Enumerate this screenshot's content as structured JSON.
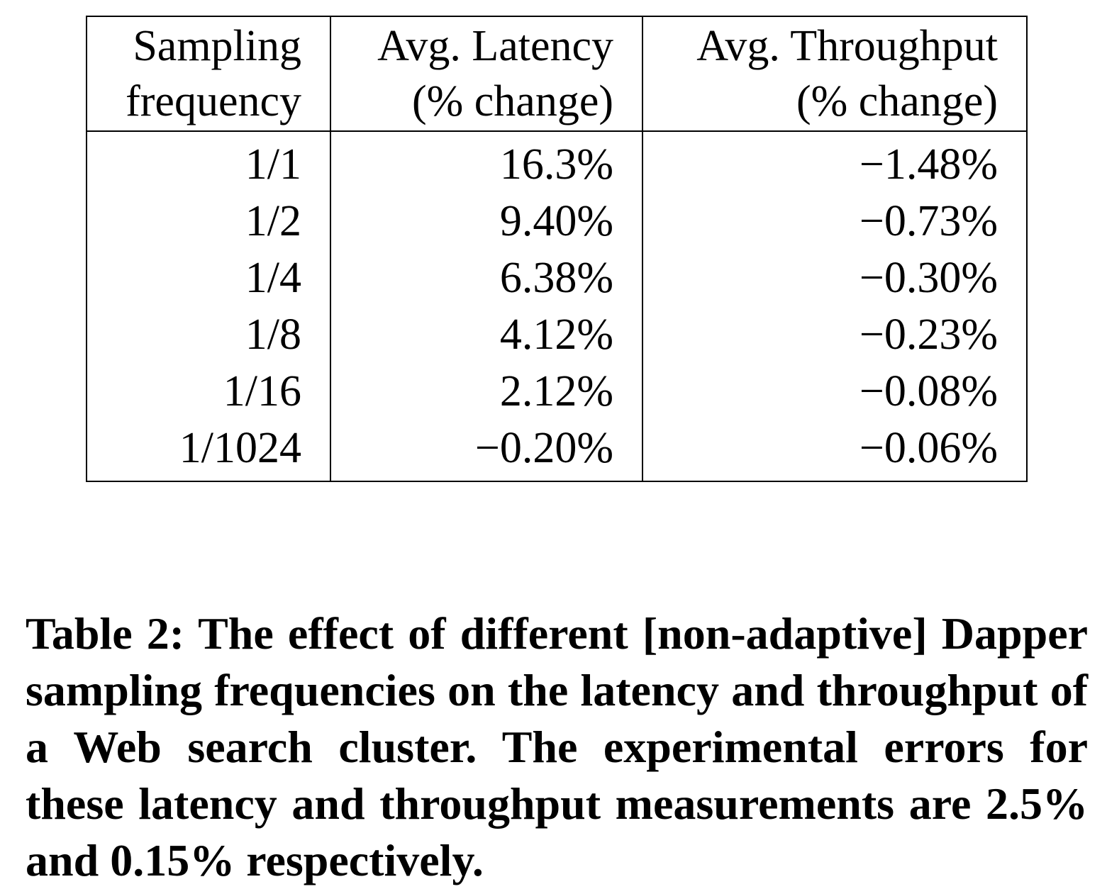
{
  "table": {
    "headers": [
      {
        "line1": "Sampling",
        "line2": "frequency"
      },
      {
        "line1": "Avg. Latency",
        "line2": "(% change)"
      },
      {
        "line1": "Avg. Throughput",
        "line2": "(% change)"
      }
    ],
    "rows": [
      {
        "frequency": "1/1",
        "latency": "16.3%",
        "throughput": "−1.48%"
      },
      {
        "frequency": "1/2",
        "latency": "9.40%",
        "throughput": "−0.73%"
      },
      {
        "frequency": "1/4",
        "latency": "6.38%",
        "throughput": "−0.30%"
      },
      {
        "frequency": "1/8",
        "latency": "4.12%",
        "throughput": "−0.23%"
      },
      {
        "frequency": "1/16",
        "latency": "2.12%",
        "throughput": "−0.08%"
      },
      {
        "frequency": "1/1024",
        "latency": "−0.20%",
        "throughput": "−0.06%"
      }
    ]
  },
  "caption": {
    "text": "Table 2: The effect of different [non-adaptive] Dap­per sampling frequencies on the latency and through­put of a Web search cluster. The experimental errors for these latency and throughput measurements are 2.5% and 0.15% respectively."
  }
}
